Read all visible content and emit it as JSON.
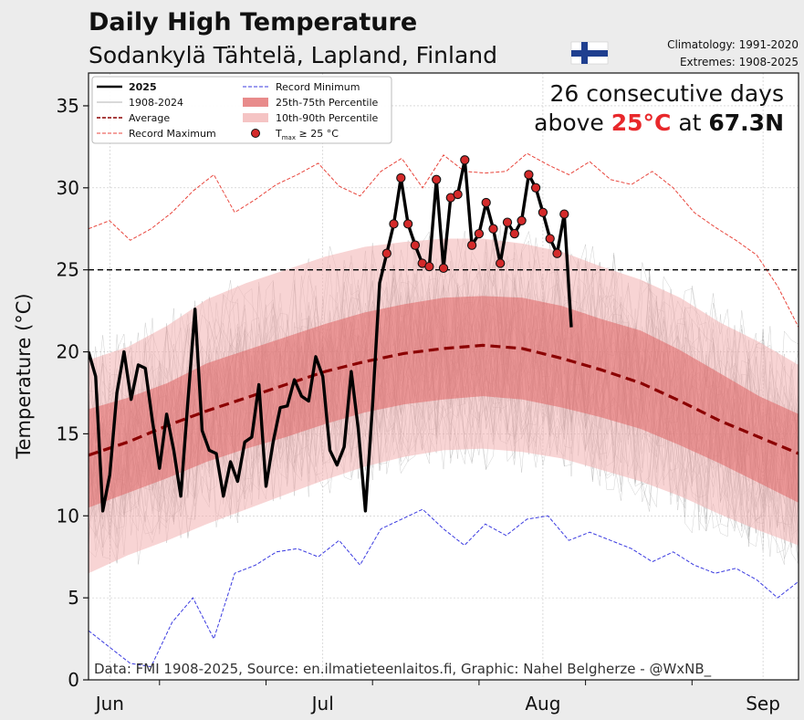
{
  "header": {
    "title": "Daily High Temperature",
    "subtitle": "Sodankylä Tähtelä, Lapland, Finland",
    "climatology": "Climatology: 1991-2020",
    "extremes": "Extremes: 1908-2025"
  },
  "annotation": {
    "line1": "26 consecutive days",
    "line2_pre": "above ",
    "line2_temp": "25°C",
    "line2_mid": " at ",
    "line2_lat": "67.3N"
  },
  "credit": "Data: FMI 1908-2025, Source: en.ilmatieteenlaitos.fi, Graphic: Nahel Belgherze - @WxNB_",
  "legend": {
    "y2025": "2025",
    "historic": "1908-2024",
    "average": "Average",
    "record_max": "Record Maximum",
    "record_min": "Record Minimum",
    "p25_75": "25th-75th Percentile",
    "p10_90": "10th-90th Percentile",
    "marker_base": "T",
    "marker_sub": "max",
    "marker_rest": " ≥ 25 °C"
  },
  "colors": {
    "background": "#ececec",
    "plot_bg": "#ffffff",
    "series_2025": "#000000",
    "historic": "#9a9a9a",
    "average": "#8b0000",
    "record_max": "#e8453c",
    "record_min": "#3a3ae0",
    "band_25_75": "#e06464",
    "band_10_90": "#f2b0b0",
    "marker": "#d42a2a",
    "highlight": "#e8282b",
    "flag_blue": "#1f3f8f"
  },
  "chart_data": {
    "type": "line",
    "ylabel": "Temperature (°C)",
    "ylim": [
      0,
      37
    ],
    "xlim_days": [
      -3,
      97
    ],
    "yticks": [
      0,
      5,
      10,
      15,
      20,
      25,
      30,
      35
    ],
    "xticks": [
      {
        "label": "Jun",
        "date": "Jun 1"
      },
      {
        "label": "Jul",
        "date": "Jul 1"
      },
      {
        "label": "Aug",
        "date": "Aug 1"
      },
      {
        "label": "Sep",
        "date": "Sep 1"
      }
    ],
    "grid": true,
    "threshold": 25,
    "series_2025": {
      "start_date": "May 29",
      "values": [
        20.0,
        18.5,
        10.3,
        12.5,
        17.5,
        20.0,
        17.1,
        19.2,
        19.0,
        15.8,
        12.9,
        16.2,
        14.0,
        11.2,
        17.0,
        22.6,
        15.2,
        14.0,
        13.8,
        11.2,
        13.3,
        12.1,
        14.5,
        14.8,
        18.0,
        11.8,
        14.5,
        16.6,
        16.7,
        18.3,
        17.3,
        17.0,
        19.7,
        18.5,
        14.0,
        13.1,
        14.2,
        18.8,
        15.3,
        10.3,
        16.7,
        24.2,
        26.0,
        27.8,
        30.6,
        27.8,
        26.5,
        25.4,
        25.2,
        30.5,
        25.1,
        29.4,
        29.6,
        31.7,
        26.5,
        27.2,
        29.1,
        27.5,
        25.4,
        27.9,
        27.2,
        28.0,
        30.8,
        30.0,
        28.5,
        26.9,
        26.0,
        28.4,
        21.5
      ]
    },
    "average": {
      "start_date": "May 29",
      "end_date": "Sep 6",
      "values": [
        13.7,
        14.5,
        15.5,
        16.4,
        17.2,
        18.0,
        18.8,
        19.4,
        19.9,
        20.2,
        20.4,
        20.2,
        19.6,
        18.9,
        18.1,
        17.0,
        15.8,
        14.8,
        13.8
      ]
    },
    "percentile_25_75": {
      "lower": [
        10.5,
        11.4,
        12.3,
        13.3,
        14.1,
        14.8,
        15.6,
        16.3,
        16.8,
        17.1,
        17.3,
        17.1,
        16.6,
        16.0,
        15.3,
        14.3,
        13.2,
        12.0,
        10.8
      ],
      "upper": [
        16.5,
        17.2,
        18.1,
        19.3,
        20.1,
        20.9,
        21.7,
        22.4,
        22.9,
        23.3,
        23.4,
        23.3,
        22.8,
        22.0,
        21.3,
        20.1,
        18.7,
        17.3,
        16.2
      ]
    },
    "percentile_10_90": {
      "lower": [
        6.5,
        7.6,
        8.5,
        9.5,
        10.4,
        11.3,
        12.2,
        13.0,
        13.6,
        14.0,
        14.1,
        13.9,
        13.5,
        12.8,
        12.1,
        11.2,
        10.1,
        9.1,
        8.2
      ],
      "upper": [
        19.5,
        20.3,
        21.6,
        23.2,
        24.2,
        25.0,
        25.8,
        26.4,
        26.7,
        26.9,
        26.9,
        26.6,
        26.1,
        25.2,
        24.4,
        23.3,
        21.8,
        20.6,
        19.2
      ]
    },
    "record_max": {
      "start_date": "May 29",
      "end_date": "Sep 6",
      "values": [
        27.5,
        28.0,
        26.8,
        27.5,
        28.5,
        29.8,
        30.8,
        28.5,
        29.3,
        30.2,
        30.8,
        31.5,
        30.1,
        29.5,
        31.0,
        31.8,
        30.0,
        32.0,
        31.0,
        30.9,
        31.0,
        32.1,
        31.4,
        30.8,
        31.6,
        30.5,
        30.2,
        31.0,
        30.0,
        28.5,
        27.6,
        26.8,
        25.9,
        24.0,
        21.5
      ]
    },
    "record_min": {
      "start_date": "May 29",
      "end_date": "Sep 6",
      "values": [
        3.0,
        2.0,
        1.0,
        0.8,
        3.5,
        5.0,
        2.5,
        6.5,
        7.0,
        7.8,
        8.0,
        7.5,
        8.5,
        7.0,
        9.2,
        9.8,
        10.4,
        9.2,
        8.2,
        9.5,
        8.8,
        9.8,
        10.0,
        8.5,
        9.0,
        8.5,
        8.0,
        7.2,
        7.8,
        7.0,
        6.5,
        6.8,
        6.1,
        5.0,
        6.0
      ]
    }
  }
}
